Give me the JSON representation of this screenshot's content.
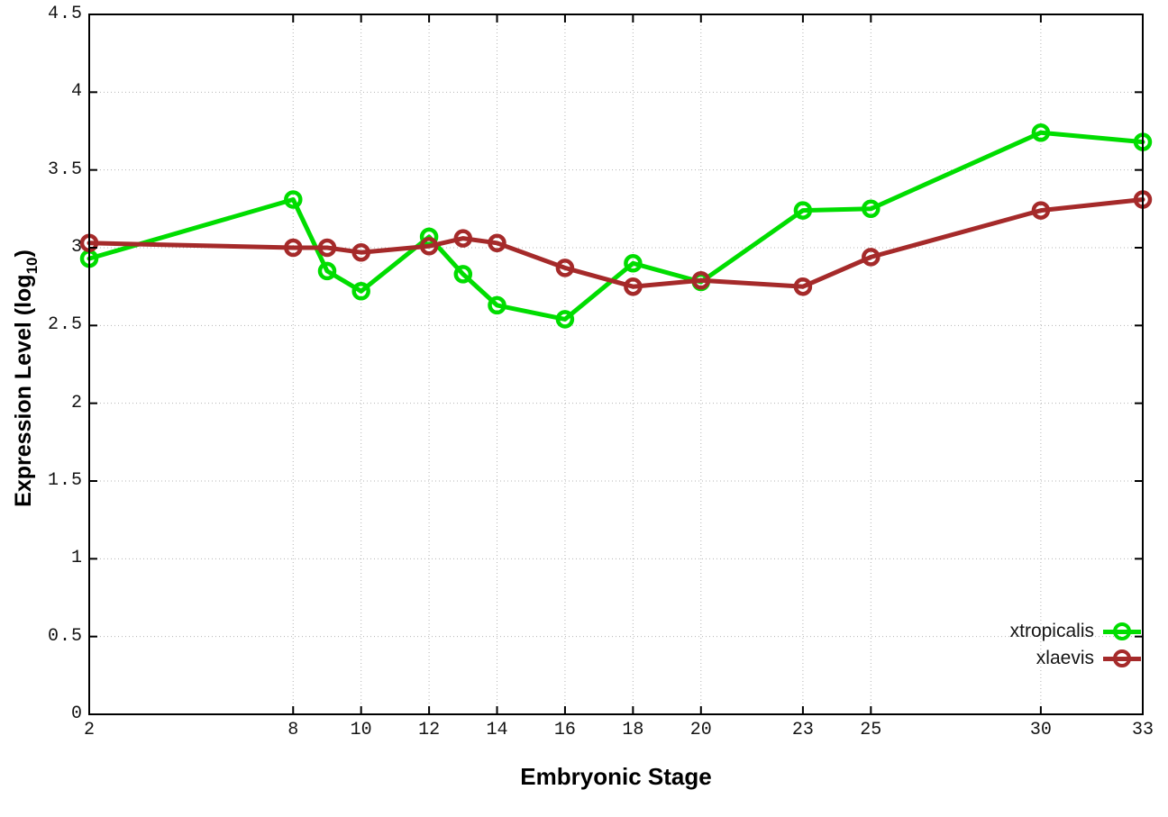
{
  "chart_data": {
    "type": "line",
    "title": "",
    "xlabel": "Embryonic Stage",
    "ylabel": {
      "base": "Expression Level (log",
      "sub": "10",
      "close": ")"
    },
    "xlim": [
      2,
      33
    ],
    "ylim": [
      0,
      4.5
    ],
    "grid": true,
    "legend_position": "inside bottom-right",
    "x": [
      2,
      8,
      9,
      10,
      12,
      13,
      14,
      16,
      18,
      20,
      23,
      25,
      30,
      33
    ],
    "xticks": {
      "values": [
        2,
        8,
        10,
        12,
        14,
        16,
        18,
        20,
        23,
        25,
        30,
        33
      ],
      "labels": [
        "2",
        "8",
        "10",
        "12",
        "14",
        "16",
        "18",
        "20",
        "23",
        "25",
        "30",
        "33"
      ]
    },
    "yticks": {
      "values": [
        0,
        0.5,
        1,
        1.5,
        2,
        2.5,
        3,
        3.5,
        4,
        4.5
      ],
      "labels": [
        "0",
        "0.5",
        "1",
        "1.5",
        "2",
        "2.5",
        "3",
        "3.5",
        "4",
        "4.5"
      ]
    },
    "series": [
      {
        "name": "xtropicalis",
        "color": "#00dd00",
        "marker": "open-circle",
        "values": [
          2.93,
          3.31,
          2.85,
          2.72,
          3.07,
          2.83,
          2.63,
          2.54,
          2.9,
          2.78,
          3.24,
          3.25,
          3.74,
          3.68
        ]
      },
      {
        "name": "xlaevis",
        "color": "#a52a2a",
        "marker": "open-circle",
        "values": [
          3.03,
          3.0,
          3.0,
          2.97,
          3.01,
          3.06,
          3.03,
          2.87,
          2.75,
          2.79,
          2.75,
          2.94,
          3.24,
          3.31
        ]
      }
    ]
  },
  "style_colors": {
    "background": "#ffffff",
    "axis": "#000000",
    "grid": "#b4b4b4",
    "tick_text": "#141414"
  }
}
